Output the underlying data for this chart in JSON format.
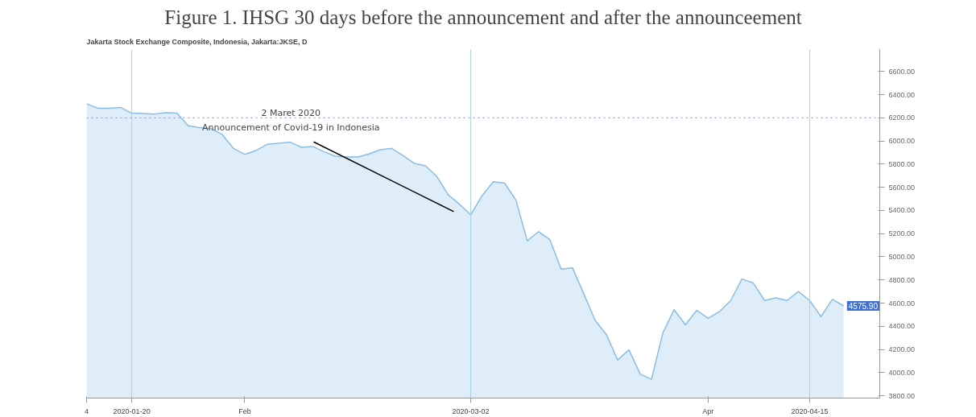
{
  "chart_data": {
    "type": "area",
    "title": "Figure 1. IHSG 30 days before the announcement and after the announceement",
    "subtitle": "Jakarta Stock Exchange Composite, Indonesia, Jakarta:JKSE, D",
    "categories": [
      "4",
      null,
      null,
      null,
      "2020-01-20",
      null,
      null,
      null,
      null,
      null,
      null,
      null,
      null,
      null,
      "Feb",
      null,
      null,
      null,
      null,
      null,
      null,
      null,
      null,
      null,
      null,
      null,
      null,
      null,
      null,
      null,
      null,
      null,
      null,
      null,
      "2020-03-02",
      null,
      null,
      null,
      null,
      null,
      null,
      null,
      null,
      null,
      null,
      null,
      null,
      null,
      null,
      null,
      null,
      null,
      null,
      null,
      null,
      "Apr",
      null,
      null,
      null,
      null,
      null,
      null,
      null,
      null,
      "2020-04-15",
      null,
      null,
      null
    ],
    "series": [
      {
        "color": "#89bde6",
        "values": [
          6322,
          6283,
          6283,
          6290,
          6240,
          6238,
          6233,
          6244,
          6240,
          6131,
          6115,
          6108,
          6057,
          5936,
          5884,
          5918,
          5972,
          5981,
          5991,
          5946,
          5953,
          5908,
          5869,
          5862,
          5862,
          5888,
          5925,
          5936,
          5875,
          5807,
          5786,
          5693,
          5536,
          5454,
          5362,
          5527,
          5649,
          5636,
          5489,
          5138,
          5217,
          5148,
          4894,
          4905,
          4681,
          4452,
          4329,
          4109,
          4196,
          3988,
          3942,
          4342,
          4543,
          4413,
          4538,
          4469,
          4526,
          4621,
          4808,
          4775,
          4623,
          4646,
          4623,
          4700,
          4623,
          4484,
          4633,
          4575.9
        ],
        "value_labels": [
          null,
          null,
          null,
          null,
          null,
          null,
          null,
          null,
          null,
          null,
          null,
          null,
          null,
          null,
          null,
          null,
          null,
          null,
          null,
          null,
          null,
          null,
          null,
          null,
          null,
          null,
          null,
          null,
          null,
          null,
          null,
          null,
          null,
          null,
          null,
          null,
          null,
          null,
          null,
          null,
          null,
          null,
          null,
          null,
          null,
          null,
          null,
          null,
          null,
          null,
          null,
          null,
          null,
          null,
          null,
          null,
          null,
          null,
          null,
          null,
          null,
          null,
          null,
          null,
          null,
          null,
          null,
          "4575.90"
        ]
      }
    ],
    "ylim": [
      3780,
      6790
    ],
    "yticks": [
      {
        "value": 3800,
        "label": "3800.00"
      },
      {
        "value": 4000,
        "label": "4000.00"
      },
      {
        "value": 4200,
        "label": "4200.00"
      },
      {
        "value": 4400,
        "label": "4400.00"
      },
      {
        "value": 4600,
        "label": "4600.00"
      },
      {
        "value": 4800,
        "label": "4800.00"
      },
      {
        "value": 5000,
        "label": "5000.00"
      },
      {
        "value": 5200,
        "label": "5200.00"
      },
      {
        "value": 5400,
        "label": "5400.00"
      },
      {
        "value": 5600,
        "label": "5600.00"
      },
      {
        "value": 5800,
        "label": "5800.00"
      },
      {
        "value": 6000,
        "label": "6000.00"
      },
      {
        "value": 6200,
        "label": "6200.00"
      },
      {
        "value": 6400,
        "label": "6400.00"
      },
      {
        "value": 6600,
        "label": "6600.00"
      }
    ],
    "ref_lines": [
      {
        "axis": "x",
        "value": "2020-01-20",
        "color": "#a8d4e6"
      },
      {
        "axis": "x",
        "value": "2020-03-02",
        "color": "#a8d4e6"
      },
      {
        "axis": "x",
        "value": "2020-04-15",
        "color": "#a8d4e6"
      },
      {
        "axis": "y",
        "value": 6200,
        "color": "#8c8ce0",
        "line_style": "dotted"
      }
    ],
    "annotations": [
      "2 Maret 2020\nAnnouncement of Covid-19 in Indonesia"
    ],
    "grid": false,
    "line_style": "solid",
    "marker": "none"
  }
}
